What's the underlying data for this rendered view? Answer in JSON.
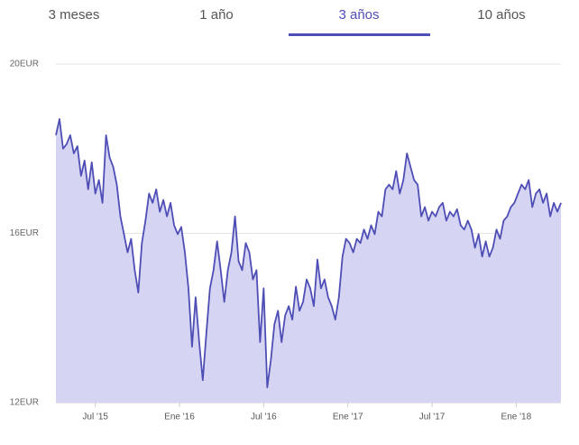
{
  "tabs": {
    "items": [
      "3 meses",
      "1 año",
      "3 años",
      "10 años"
    ],
    "selected": 2
  },
  "chart_data": {
    "type": "area",
    "color": "#4e4eb6",
    "fill": "#d5d4f2",
    "values": [
      18.32,
      18.7,
      18.0,
      18.11,
      18.32,
      17.89,
      18.06,
      17.36,
      17.72,
      17.04,
      17.68,
      16.94,
      17.26,
      16.72,
      18.32,
      17.79,
      17.57,
      17.15,
      16.4,
      15.98,
      15.55,
      15.87,
      15.13,
      14.6,
      15.77,
      16.3,
      16.94,
      16.72,
      17.04,
      16.51,
      16.79,
      16.4,
      16.72,
      16.19,
      15.98,
      16.15,
      15.55,
      14.7,
      13.32,
      14.49,
      13.43,
      12.53,
      13.64,
      14.7,
      15.13,
      15.81,
      15.13,
      14.38,
      15.13,
      15.55,
      16.4,
      15.34,
      15.13,
      15.77,
      15.55,
      14.91,
      15.13,
      13.43,
      14.7,
      12.36,
      13.0,
      13.85,
      14.17,
      13.43,
      14.06,
      14.28,
      13.96,
      14.74,
      14.17,
      14.38,
      14.91,
      14.7,
      14.28,
      15.38,
      14.7,
      14.91,
      14.49,
      14.28,
      13.96,
      14.49,
      15.45,
      15.87,
      15.77,
      15.55,
      15.87,
      15.77,
      16.09,
      15.87,
      16.19,
      15.98,
      16.51,
      16.4,
      17.04,
      17.15,
      17.04,
      17.47,
      16.94,
      17.26,
      17.89,
      17.57,
      17.26,
      17.15,
      16.4,
      16.62,
      16.3,
      16.51,
      16.4,
      16.62,
      16.72,
      16.3,
      16.51,
      16.4,
      16.57,
      16.19,
      16.09,
      16.3,
      16.09,
      15.66,
      15.98,
      15.45,
      15.81,
      15.45,
      15.66,
      16.09,
      15.87,
      16.3,
      16.4,
      16.62,
      16.72,
      16.94,
      17.15,
      17.04,
      17.26,
      16.62,
      16.94,
      17.04,
      16.72,
      16.94,
      16.4,
      16.72,
      16.51,
      16.72
    ],
    "xlim": [
      0,
      141
    ],
    "xticks": [
      {
        "value": 11,
        "label": "Jul '15"
      },
      {
        "value": 34.5,
        "label": "Ene '16"
      },
      {
        "value": 58,
        "label": "Jul '16"
      },
      {
        "value": 81.5,
        "label": "Ene '17"
      },
      {
        "value": 105,
        "label": "Jul '17"
      },
      {
        "value": 128.5,
        "label": "Ene '18"
      }
    ],
    "ylim": [
      12,
      20
    ],
    "yticks": [
      {
        "value": 12,
        "label": "12EUR"
      },
      {
        "value": 16,
        "label": "16EUR"
      },
      {
        "value": 20,
        "label": "20EUR"
      }
    ],
    "grid": true
  }
}
